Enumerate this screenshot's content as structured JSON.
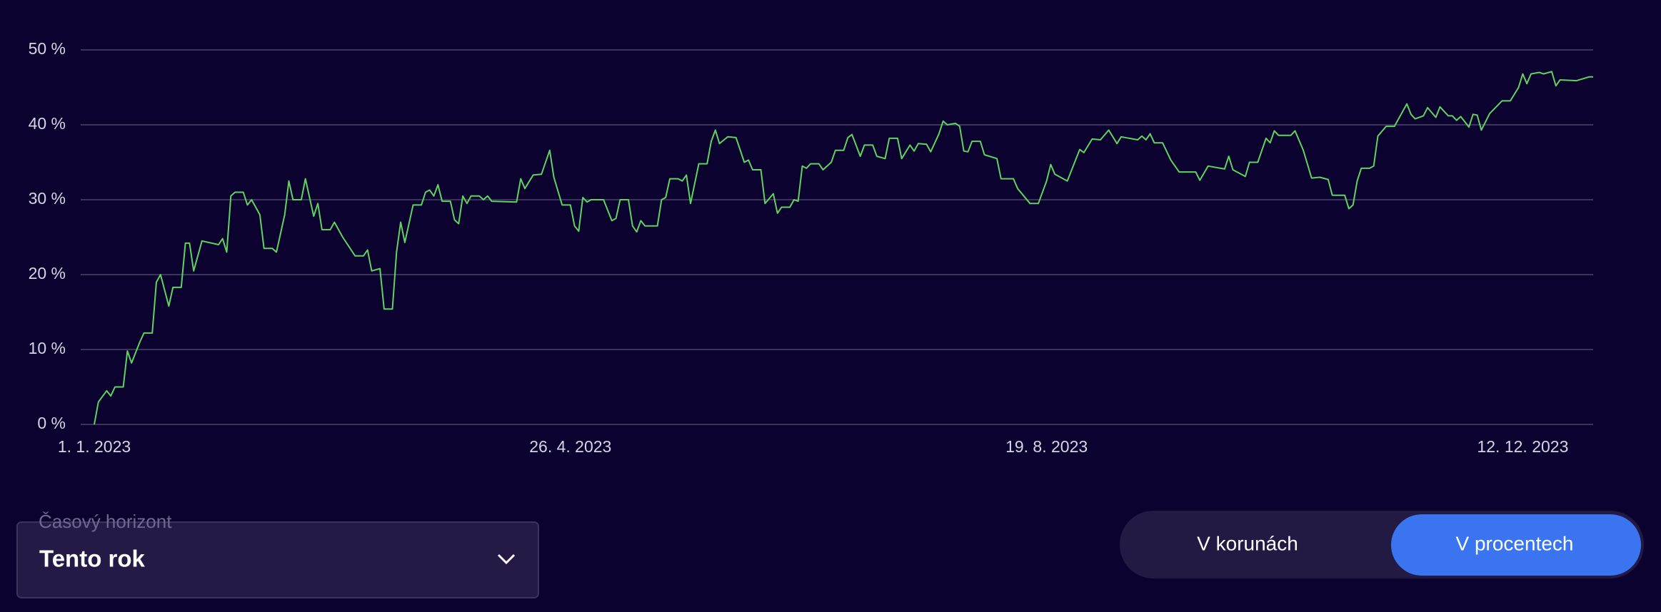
{
  "chart_data": {
    "type": "line",
    "color": "#5fd35f",
    "grid": true,
    "ylim": [
      0,
      50
    ],
    "yticks": [
      {
        "value": 0,
        "label": "0 %"
      },
      {
        "value": 10,
        "label": "10 %"
      },
      {
        "value": 20,
        "label": "20 %"
      },
      {
        "value": 30,
        "label": "30 %"
      },
      {
        "value": 40,
        "label": "40 %"
      },
      {
        "value": 50,
        "label": "50 %"
      }
    ],
    "xlim": [
      "2023-01-01",
      "2023-12-29"
    ],
    "xticks": [
      {
        "value": "2023-01-01",
        "label": "1. 1. 2023"
      },
      {
        "value": "2023-04-26",
        "label": "26. 4. 2023"
      },
      {
        "value": "2023-08-19",
        "label": "19. 8. 2023"
      },
      {
        "value": "2023-12-12",
        "label": "12. 12. 2023"
      }
    ],
    "x": [
      "2023-01-01",
      "2023-01-02",
      "2023-01-04",
      "2023-01-05",
      "2023-01-06",
      "2023-01-08",
      "2023-01-09",
      "2023-01-10",
      "2023-01-12",
      "2023-01-13",
      "2023-01-15",
      "2023-01-16",
      "2023-01-17",
      "2023-01-19",
      "2023-01-20",
      "2023-01-22",
      "2023-01-23",
      "2023-01-24",
      "2023-01-25",
      "2023-01-27",
      "2023-01-31",
      "2023-02-01",
      "2023-02-02",
      "2023-02-03",
      "2023-02-04",
      "2023-02-06",
      "2023-02-07",
      "2023-02-08",
      "2023-02-10",
      "2023-02-11",
      "2023-02-13",
      "2023-02-14",
      "2023-02-16",
      "2023-02-17",
      "2023-02-18",
      "2023-02-20",
      "2023-02-21",
      "2023-02-23",
      "2023-02-24",
      "2023-02-25",
      "2023-02-27",
      "2023-02-28",
      "2023-03-02",
      "2023-03-05",
      "2023-03-07",
      "2023-03-08",
      "2023-03-09",
      "2023-03-11",
      "2023-03-12",
      "2023-03-14",
      "2023-03-15",
      "2023-03-16",
      "2023-03-17",
      "2023-03-19",
      "2023-03-21",
      "2023-03-22",
      "2023-03-23",
      "2023-03-24",
      "2023-03-25",
      "2023-03-26",
      "2023-03-28",
      "2023-03-29",
      "2023-03-30",
      "2023-03-31",
      "2023-04-01",
      "2023-04-02",
      "2023-04-04",
      "2023-04-05",
      "2023-04-06",
      "2023-04-07",
      "2023-04-13",
      "2023-04-14",
      "2023-04-15",
      "2023-04-17",
      "2023-04-19",
      "2023-04-21",
      "2023-04-22",
      "2023-04-24",
      "2023-04-26",
      "2023-04-27",
      "2023-04-28",
      "2023-04-29",
      "2023-04-30",
      "2023-05-01",
      "2023-05-04",
      "2023-05-06",
      "2023-05-07",
      "2023-05-08",
      "2023-05-10",
      "2023-05-11",
      "2023-05-12",
      "2023-05-13",
      "2023-05-14",
      "2023-05-17",
      "2023-05-18",
      "2023-05-19",
      "2023-05-20",
      "2023-05-22",
      "2023-05-23",
      "2023-05-24",
      "2023-05-25",
      "2023-05-27",
      "2023-05-29",
      "2023-05-30",
      "2023-05-31",
      "2023-06-01",
      "2023-06-03",
      "2023-06-05",
      "2023-06-07",
      "2023-06-08",
      "2023-06-09",
      "2023-06-11",
      "2023-06-12",
      "2023-06-14",
      "2023-06-15",
      "2023-06-16",
      "2023-06-18",
      "2023-06-19",
      "2023-06-20",
      "2023-06-21",
      "2023-06-22",
      "2023-06-23",
      "2023-06-25",
      "2023-06-26",
      "2023-06-28",
      "2023-06-29",
      "2023-07-01",
      "2023-07-02",
      "2023-07-03",
      "2023-07-05",
      "2023-07-06",
      "2023-07-08",
      "2023-07-09",
      "2023-07-11",
      "2023-07-12",
      "2023-07-14",
      "2023-07-15",
      "2023-07-17",
      "2023-07-18",
      "2023-07-19",
      "2023-07-21",
      "2023-07-22",
      "2023-07-24",
      "2023-07-25",
      "2023-07-26",
      "2023-07-28",
      "2023-07-29",
      "2023-07-30",
      "2023-07-31",
      "2023-08-01",
      "2023-08-03",
      "2023-08-04",
      "2023-08-07",
      "2023-08-08",
      "2023-08-09",
      "2023-08-11",
      "2023-08-12",
      "2023-08-15",
      "2023-08-17",
      "2023-08-19",
      "2023-08-20",
      "2023-08-21",
      "2023-08-24",
      "2023-08-27",
      "2023-08-28",
      "2023-08-30",
      "2023-09-01",
      "2023-09-03",
      "2023-09-05",
      "2023-09-06",
      "2023-09-10",
      "2023-09-11",
      "2023-09-12",
      "2023-09-13",
      "2023-09-14",
      "2023-09-16",
      "2023-09-18",
      "2023-09-20",
      "2023-09-24",
      "2023-09-25",
      "2023-09-27",
      "2023-10-01",
      "2023-10-02",
      "2023-10-03",
      "2023-10-06",
      "2023-10-07",
      "2023-10-09",
      "2023-10-11",
      "2023-10-12",
      "2023-10-13",
      "2023-10-14",
      "2023-10-17",
      "2023-10-18",
      "2023-10-20",
      "2023-10-22",
      "2023-10-24",
      "2023-10-26",
      "2023-10-27",
      "2023-10-30",
      "2023-10-31",
      "2023-11-01",
      "2023-11-02",
      "2023-11-03",
      "2023-11-05",
      "2023-11-06",
      "2023-11-07",
      "2023-11-09",
      "2023-11-11",
      "2023-11-14",
      "2023-11-15",
      "2023-11-16",
      "2023-11-18",
      "2023-11-19",
      "2023-11-21",
      "2023-11-22",
      "2023-11-24",
      "2023-11-25",
      "2023-11-26",
      "2023-11-27",
      "2023-11-29",
      "2023-11-30",
      "2023-12-01",
      "2023-12-02",
      "2023-12-04",
      "2023-12-07",
      "2023-12-09",
      "2023-12-11",
      "2023-12-12",
      "2023-12-13",
      "2023-12-14",
      "2023-12-16",
      "2023-12-17",
      "2023-12-19",
      "2023-12-20",
      "2023-12-21",
      "2023-12-25",
      "2023-12-28",
      "2023-12-29"
    ],
    "values": [
      0,
      3,
      4.5,
      3.8,
      5,
      5,
      9.8,
      8.2,
      11,
      12.2,
      12.2,
      19,
      20,
      15.8,
      18.3,
      18.3,
      24.2,
      24.2,
      20.5,
      24.5,
      24,
      24.8,
      23,
      30.5,
      31,
      31,
      29.3,
      30,
      28,
      23.5,
      23.5,
      23,
      28,
      32.5,
      30,
      30,
      32.8,
      27.8,
      29.5,
      26,
      26,
      27,
      25,
      22.5,
      22.5,
      23.3,
      20.5,
      20.8,
      15.4,
      15.4,
      23,
      27,
      24.3,
      29.3,
      29.3,
      31,
      31.3,
      30.5,
      32,
      29.8,
      29.8,
      27.3,
      26.8,
      30.5,
      29.5,
      30.5,
      30.5,
      30,
      30.5,
      29.8,
      29.7,
      32.8,
      31.5,
      33.3,
      33.4,
      36.6,
      33,
      29.3,
      29.3,
      26.5,
      25.8,
      30.3,
      29.7,
      30,
      30,
      27.2,
      27.5,
      30,
      30,
      26.5,
      25.7,
      27.2,
      26.5,
      26.5,
      30,
      30.3,
      32.8,
      32.8,
      32.5,
      33.3,
      29.5,
      34.8,
      34.8,
      37.8,
      39.3,
      37.5,
      38.4,
      38.3,
      35,
      35.3,
      34,
      34,
      29.5,
      30.8,
      28.2,
      29,
      29,
      30,
      29.8,
      34.5,
      34.2,
      34.8,
      34.8,
      34,
      35,
      36.6,
      36.6,
      38.3,
      38.7,
      35.8,
      37.3,
      37.3,
      35.8,
      35.5,
      38.2,
      38.2,
      35.5,
      37.3,
      36.5,
      37.5,
      37.4,
      36.4,
      38.8,
      40.5,
      40,
      40.2,
      39.8,
      36.5,
      36.4,
      37.8,
      37.8,
      36,
      35.5,
      32.8,
      32.8,
      32.8,
      31.5,
      29.5,
      29.5,
      32.5,
      34.7,
      33.4,
      32.5,
      36.7,
      36.3,
      38.1,
      38,
      39.3,
      37.5,
      38.4,
      38,
      38.5,
      38,
      38.8,
      37.6,
      37.6,
      35.3,
      33.7,
      33.7,
      32.6,
      34.5,
      34.1,
      35.8,
      34,
      33.1,
      35,
      35,
      38.2,
      37.6,
      39.2,
      38.6,
      38.6,
      39.2,
      36.6,
      32.9,
      33,
      32.7,
      30.6,
      30.6,
      28.8,
      29.3,
      32.5,
      34.2,
      34.2,
      34.5,
      38.5,
      39.8,
      39.8,
      42.8,
      41.4,
      40.8,
      41.2,
      42.3,
      41,
      42.4,
      41.2,
      41.2,
      40.6,
      41.1,
      39.7,
      41.4,
      41.3,
      39.3,
      41.5,
      43.2,
      43.2,
      45,
      46.8,
      45.5,
      46.8,
      47,
      46.8,
      47.1,
      45.2,
      46,
      45.9,
      46.4,
      46.4
    ]
  },
  "controls": {
    "period_label": "Časový horizont",
    "period_value": "Tento rok",
    "toggle": [
      "V korunách",
      "V procentech"
    ]
  }
}
